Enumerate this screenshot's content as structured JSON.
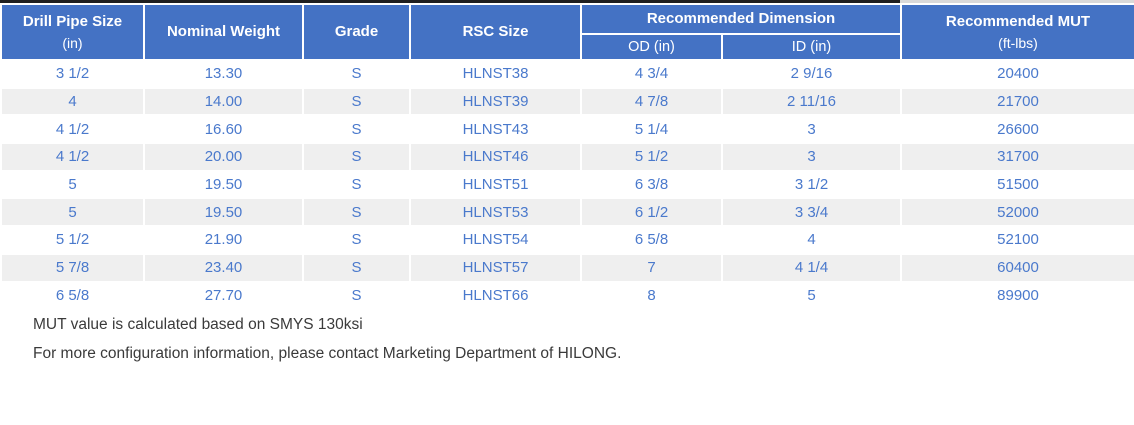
{
  "table": {
    "header": {
      "drill_pipe_size": {
        "label": "Drill Pipe Size",
        "sublabel": "(in)"
      },
      "nominal_weight": {
        "label": "Nominal Weight"
      },
      "grade": {
        "label": "Grade"
      },
      "rsc_size": {
        "label": "RSC Size"
      },
      "recommended_dimension": {
        "label": "Recommended Dimension",
        "od": "OD (in)",
        "id": "ID (in)"
      },
      "recommended_mut": {
        "label": "Recommended MUT",
        "sublabel": "(ft-lbs)"
      }
    },
    "rows": [
      [
        "3 1/2",
        "13.30",
        "S",
        "HLNST38",
        "4 3/4",
        "2 9/16",
        "20400"
      ],
      [
        "4",
        "14.00",
        "S",
        "HLNST39",
        "4 7/8",
        "2 11/16",
        "21700"
      ],
      [
        "4 1/2",
        "16.60",
        "S",
        "HLNST43",
        "5 1/4",
        "3",
        "26600"
      ],
      [
        "4 1/2",
        "20.00",
        "S",
        "HLNST46",
        "5 1/2",
        "3",
        "31700"
      ],
      [
        "5",
        "19.50",
        "S",
        "HLNST51",
        "6 3/8",
        "3 1/2",
        "51500"
      ],
      [
        "5",
        "19.50",
        "S",
        "HLNST53",
        "6 1/2",
        "3 3/4",
        "52000"
      ],
      [
        "5 1/2",
        "21.90",
        "S",
        "HLNST54",
        "6 5/8",
        "4",
        "52100"
      ],
      [
        "5 7/8",
        "23.40",
        "S",
        "HLNST57",
        "7",
        "4 1/4",
        "60400"
      ],
      [
        "6 5/8",
        "27.70",
        "S",
        "HLNST66",
        "8",
        "5",
        "89900"
      ]
    ]
  },
  "notes": [
    "MUT value is calculated based on SMYS 130ksi",
    "For more configuration information, please contact Marketing Department of HILONG."
  ],
  "colors": {
    "header_bg": "#4472C4",
    "data_text": "#4A79CC",
    "row_stripe": "#EFEFEF",
    "note_text": "#3A3A3A",
    "top_border_dark": "#1F1F1F",
    "top_border_light": "#D9D9D9"
  }
}
